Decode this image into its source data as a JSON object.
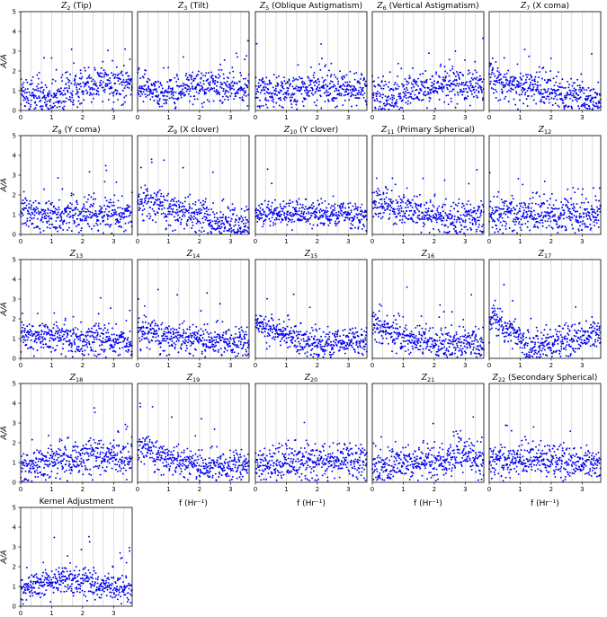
{
  "chart_data": {
    "type": "scatter",
    "marker_color": "#0000ee",
    "xlim": [
      0,
      3.6
    ],
    "ylim": [
      0,
      5
    ],
    "x_ticks": [
      "0",
      "1",
      "2",
      "3"
    ],
    "y_ticks": [
      "0",
      "1",
      "2",
      "3",
      "4",
      "5"
    ],
    "x_gridlines": [
      0.333,
      0.667,
      1.0,
      1.333,
      1.667,
      2.0,
      2.333,
      2.667,
      3.0,
      3.333
    ],
    "ylabel_text": "A/Ā",
    "xlabel_text": "f (Hr⁻¹)",
    "panels": [
      {
        "title_sym": "Z",
        "title_sub": "2",
        "title_rest": " (Tip)",
        "trend": [
          [
            0,
            0.9
          ],
          [
            0.9,
            0.55
          ],
          [
            1.5,
            1.0
          ],
          [
            2.5,
            1.35
          ],
          [
            3.6,
            1.2
          ]
        ],
        "spread": 0.45
      },
      {
        "title_sym": "Z",
        "title_sub": "3",
        "title_rest": " (Tilt)",
        "trend": [
          [
            0,
            1.1
          ],
          [
            0.8,
            0.8
          ],
          [
            1.6,
            1.15
          ],
          [
            2.6,
            1.3
          ],
          [
            3.6,
            1.0
          ]
        ],
        "spread": 0.4
      },
      {
        "title_sym": "Z",
        "title_sub": "5",
        "title_rest": " (Oblique Astigmatism)",
        "trend": [
          [
            0,
            1.0
          ],
          [
            1.2,
            0.95
          ],
          [
            2.2,
            1.25
          ],
          [
            3.6,
            0.9
          ]
        ],
        "spread": 0.45
      },
      {
        "title_sym": "Z",
        "title_sub": "6",
        "title_rest": " (Vertical Astigmatism)",
        "trend": [
          [
            0,
            0.8
          ],
          [
            1.6,
            1.0
          ],
          [
            2.6,
            1.35
          ],
          [
            3.6,
            1.1
          ]
        ],
        "spread": 0.45
      },
      {
        "title_sym": "Z",
        "title_sub": "7",
        "title_rest": " (X coma)",
        "trend": [
          [
            0,
            1.7
          ],
          [
            1.0,
            1.3
          ],
          [
            2.0,
            0.9
          ],
          [
            3.6,
            0.6
          ]
        ],
        "spread": 0.45
      },
      {
        "title_sym": "Z",
        "title_sub": "8",
        "title_rest": " (Y coma)",
        "trend": [
          [
            0,
            1.2
          ],
          [
            1.2,
            0.9
          ],
          [
            2.4,
            1.1
          ],
          [
            3.6,
            0.9
          ]
        ],
        "spread": 0.45
      },
      {
        "title_sym": "Z",
        "title_sub": "9",
        "title_rest": " (X clover)",
        "trend": [
          [
            0,
            1.8
          ],
          [
            1.2,
            1.3
          ],
          [
            2.4,
            0.7
          ],
          [
            3.6,
            0.55
          ]
        ],
        "spread": 0.45
      },
      {
        "title_sym": "Z",
        "title_sub": "10",
        "title_rest": " (Y clover)",
        "trend": [
          [
            0,
            1.1
          ],
          [
            1.8,
            1.05
          ],
          [
            3.6,
            0.95
          ]
        ],
        "spread": 0.3
      },
      {
        "title_sym": "Z",
        "title_sub": "11",
        "title_rest": " (Primary Spherical)",
        "trend": [
          [
            0,
            1.7
          ],
          [
            1.0,
            1.2
          ],
          [
            2.4,
            0.8
          ],
          [
            3.6,
            0.7
          ]
        ],
        "spread": 0.45
      },
      {
        "title_sym": "Z",
        "title_sub": "12",
        "title_rest": "",
        "trend": [
          [
            0,
            1.0
          ],
          [
            1.8,
            0.95
          ],
          [
            3.6,
            1.05
          ]
        ],
        "spread": 0.45
      },
      {
        "title_sym": "Z",
        "title_sub": "13",
        "title_rest": "",
        "trend": [
          [
            0,
            1.2
          ],
          [
            1.8,
            1.0
          ],
          [
            3.6,
            0.8
          ]
        ],
        "spread": 0.4
      },
      {
        "title_sym": "Z",
        "title_sub": "14",
        "title_rest": "",
        "trend": [
          [
            0,
            1.4
          ],
          [
            1.6,
            1.0
          ],
          [
            3.6,
            0.8
          ]
        ],
        "spread": 0.4
      },
      {
        "title_sym": "Z",
        "title_sub": "15",
        "title_rest": "",
        "trend": [
          [
            0,
            1.8
          ],
          [
            0.6,
            1.4
          ],
          [
            1.8,
            0.75
          ],
          [
            2.6,
            0.7
          ],
          [
            3.6,
            0.85
          ]
        ],
        "spread": 0.35
      },
      {
        "title_sym": "Z",
        "title_sub": "16",
        "title_rest": "",
        "trend": [
          [
            0,
            1.7
          ],
          [
            1.2,
            1.05
          ],
          [
            2.4,
            0.7
          ],
          [
            3.6,
            0.75
          ]
        ],
        "spread": 0.4
      },
      {
        "title_sym": "Z",
        "title_sub": "17",
        "title_rest": "",
        "trend": [
          [
            0,
            2.1
          ],
          [
            0.7,
            1.4
          ],
          [
            1.3,
            0.45
          ],
          [
            2.2,
            0.9
          ],
          [
            3.6,
            1.3
          ]
        ],
        "spread": 0.4
      },
      {
        "title_sym": "Z",
        "title_sub": "18",
        "title_rest": "",
        "trend": [
          [
            0,
            0.8
          ],
          [
            1.8,
            1.2
          ],
          [
            2.7,
            1.4
          ],
          [
            3.6,
            1.1
          ]
        ],
        "spread": 0.45
      },
      {
        "title_sym": "Z",
        "title_sub": "19",
        "title_rest": "",
        "trend": [
          [
            0,
            1.9
          ],
          [
            1.2,
            1.1
          ],
          [
            2.2,
            0.8
          ],
          [
            3.6,
            0.9
          ]
        ],
        "spread": 0.4
      },
      {
        "title_sym": "Z",
        "title_sub": "20",
        "title_rest": "",
        "trend": [
          [
            0,
            0.9
          ],
          [
            1.8,
            1.1
          ],
          [
            3.6,
            1.0
          ]
        ],
        "spread": 0.45
      },
      {
        "title_sym": "Z",
        "title_sub": "21",
        "title_rest": "",
        "trend": [
          [
            0,
            0.8
          ],
          [
            1.8,
            1.0
          ],
          [
            2.8,
            1.3
          ],
          [
            3.6,
            1.1
          ]
        ],
        "spread": 0.45
      },
      {
        "title_sym": "Z",
        "title_sub": "22",
        "title_rest": " (Secondary Spherical)",
        "trend": [
          [
            0,
            1.0
          ],
          [
            1.8,
            1.15
          ],
          [
            3.6,
            0.95
          ]
        ],
        "spread": 0.4
      },
      {
        "title_sym": "",
        "title_sub": "",
        "title_rest": "Kernel Adjustment",
        "trend": [
          [
            0,
            0.9
          ],
          [
            1.6,
            1.45
          ],
          [
            2.4,
            1.1
          ],
          [
            3.6,
            0.85
          ]
        ],
        "spread": 0.35
      }
    ]
  }
}
